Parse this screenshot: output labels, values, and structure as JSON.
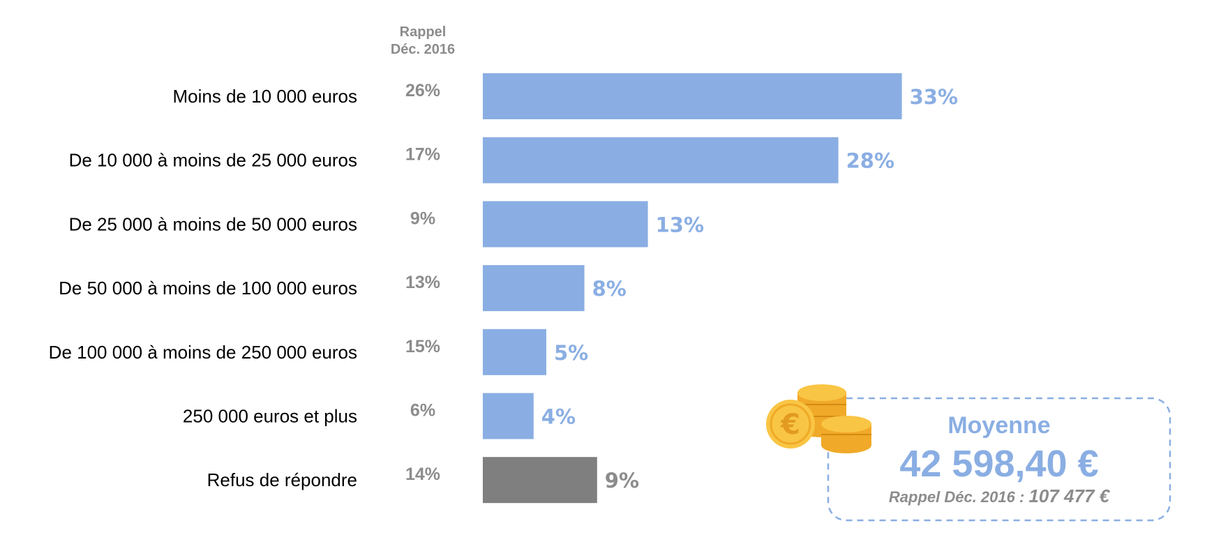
{
  "chart_data": {
    "type": "bar",
    "orientation": "horizontal",
    "categories": [
      "Moins de 10 000 euros",
      "De 10 000 à moins de 25 000 euros",
      "De 25 000 à moins de 50 000 euros",
      "De 50 000 à moins de 100 000 euros",
      "De 100 000 à moins de 250 000 euros",
      "250 000 euros et plus",
      "Refus de répondre"
    ],
    "values": [
      33,
      28,
      13,
      8,
      5,
      4,
      9
    ],
    "value_labels": [
      "33%",
      "28%",
      "13%",
      "8%",
      "5%",
      "4%",
      "9%"
    ],
    "bar_colors": [
      "#8aaee3",
      "#8aaee3",
      "#8aaee3",
      "#8aaee3",
      "#8aaee3",
      "#8aaee3",
      "#7f7f7f"
    ],
    "label_colors": [
      "#8aaee3",
      "#8aaee3",
      "#8aaee3",
      "#8aaee3",
      "#8aaee3",
      "#8aaee3",
      "#8c8c8c"
    ],
    "rappel_header": [
      "Rappel",
      "Déc. 2016"
    ],
    "rappel_values": [
      "26%",
      "17%",
      "9%",
      "13%",
      "15%",
      "6%",
      "14%"
    ],
    "grid": false,
    "legend": "none"
  },
  "summary": {
    "title": "Moyenne",
    "value": "42 598,40 €",
    "rappel_prefix": "Rappel Déc. 2016 : ",
    "rappel_value": "107 477 €",
    "accent_color": "#8aaee3",
    "icon": "euro-coins-icon"
  }
}
